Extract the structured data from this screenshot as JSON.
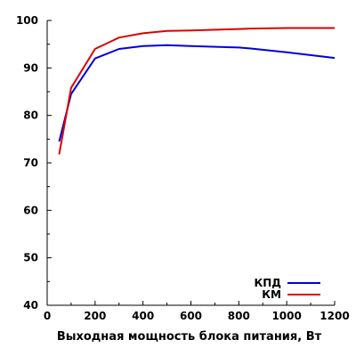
{
  "chart_data": {
    "type": "line",
    "title": "",
    "xlabel": "Выходная мощность блока питания, Вт",
    "ylabel": "",
    "xlim": [
      0,
      1200
    ],
    "ylim": [
      40,
      100
    ],
    "x_ticks": [
      "0",
      "200",
      "400",
      "600",
      "800",
      "1000",
      "1200"
    ],
    "y_ticks": [
      "40",
      "50",
      "60",
      "70",
      "80",
      "90",
      "100"
    ],
    "grid": false,
    "legend_position": "bottom-right",
    "series": [
      {
        "name": "КПД",
        "color": "#0000dd",
        "x": [
          50,
          100,
          200,
          300,
          400,
          500,
          600,
          800,
          850,
          1000,
          1200
        ],
        "y": [
          74.5,
          84.5,
          92,
          94,
          94.6,
          94.8,
          94.6,
          94.3,
          94.1,
          93.3,
          92.1
        ]
      },
      {
        "name": "КМ",
        "color": "#dd0000",
        "x": [
          50,
          100,
          200,
          300,
          400,
          500,
          600,
          800,
          850,
          1000,
          1200
        ],
        "y": [
          71.8,
          85.8,
          94,
          96.4,
          97.3,
          97.8,
          97.9,
          98.2,
          98.3,
          98.4,
          98.4
        ]
      }
    ]
  }
}
